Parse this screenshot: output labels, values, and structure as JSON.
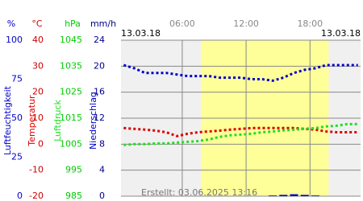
{
  "chart_data": {
    "type": "line",
    "date_left": "13.03.18",
    "date_right": "13.03.18",
    "footer": "Erstellt: 03.06.2025 13:16",
    "xlim": [
      0.25,
      22.75
    ],
    "xticks": [
      {
        "value": 6,
        "label": "06:00"
      },
      {
        "value": 12,
        "label": "12:00"
      },
      {
        "value": 18,
        "label": "18:00"
      }
    ],
    "daylight": [
      7.75,
      19.75
    ],
    "x": [
      0.5,
      1.5,
      2.5,
      3.5,
      4.5,
      5.5,
      6.5,
      7.5,
      8.5,
      9.5,
      10.5,
      11.5,
      12.5,
      13.5,
      14.5,
      15.5,
      16.5,
      17.5,
      18.5,
      19.5,
      20.5,
      21.5,
      22.5
    ],
    "axes": [
      {
        "unit": "%",
        "color": "#0000cc",
        "ylim": [
          0,
          100
        ],
        "yticks": [
          0,
          25,
          50,
          75,
          100
        ]
      },
      {
        "unit": "°C",
        "color": "#cc0000",
        "ylim": [
          -20,
          40
        ],
        "yticks": [
          -20,
          -10,
          0,
          10,
          20,
          30,
          40
        ]
      },
      {
        "unit": "hPa",
        "color": "#00cc00",
        "ylim": [
          985,
          1045
        ],
        "yticks": [
          985,
          995,
          1005,
          1015,
          1025,
          1035,
          1045
        ]
      },
      {
        "unit": "mm/h",
        "color": "#000088",
        "ylim": [
          0,
          24
        ],
        "yticks": [
          0,
          4,
          8,
          12,
          16,
          20,
          24
        ]
      }
    ],
    "series": [
      {
        "name": "Luftfeuchtigkeit",
        "color": "#0000cc",
        "axis": 0,
        "kind": "line",
        "values": [
          84,
          82,
          79,
          79,
          79,
          78,
          77,
          77,
          77,
          76,
          76,
          76,
          75,
          75,
          74,
          76,
          79,
          81,
          82,
          84,
          84,
          84,
          84
        ]
      },
      {
        "name": "Temperatur",
        "color": "#dd0000",
        "axis": 1,
        "kind": "line",
        "values": [
          6.2,
          5.9,
          5.6,
          5.2,
          4.6,
          3.1,
          4.0,
          4.6,
          4.9,
          5.2,
          5.6,
          5.9,
          6.2,
          6.2,
          6.2,
          6.2,
          6.2,
          5.9,
          5.6,
          4.9,
          4.6,
          4.6,
          4.6
        ]
      },
      {
        "name": "Luftdruck",
        "color": "#22dd22",
        "axis": 2,
        "kind": "line",
        "values": [
          1004.7,
          1005,
          1005,
          1005.3,
          1005.3,
          1005.6,
          1005.9,
          1006.2,
          1006.8,
          1007.8,
          1008.4,
          1008.7,
          1009,
          1009.6,
          1009.9,
          1010.3,
          1010.6,
          1010.9,
          1011.2,
          1011.8,
          1012.1,
          1012.7,
          1012.7
        ]
      },
      {
        "name": "Niederschlag",
        "color": "#0000cc",
        "axis": 3,
        "kind": "bar",
        "values": [
          0,
          0,
          0,
          0,
          0,
          0,
          0,
          0,
          0,
          0,
          0,
          0,
          0,
          0,
          0.1,
          0.2,
          0.3,
          0.2,
          0.1,
          0,
          0,
          0,
          0
        ]
      }
    ],
    "grid": true
  }
}
